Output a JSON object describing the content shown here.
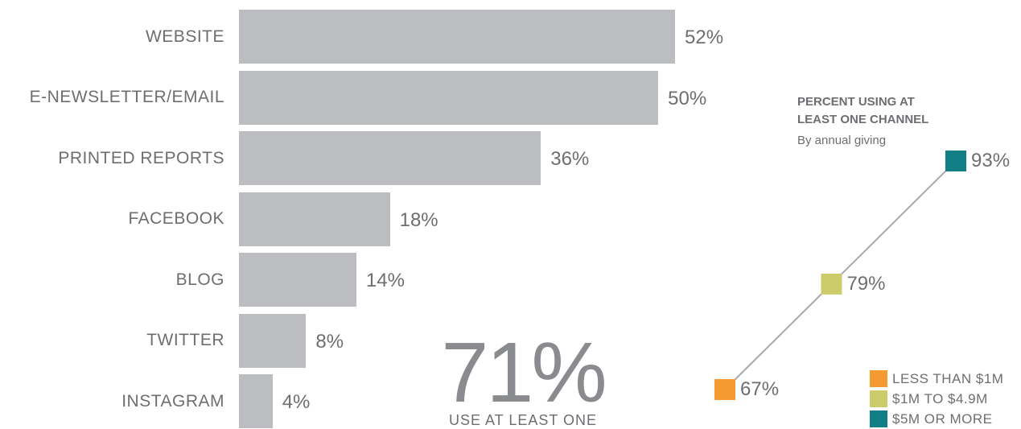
{
  "chart_data": [
    {
      "type": "bar",
      "orientation": "horizontal",
      "categories": [
        "WEBSITE",
        "E-NEWSLETTER/EMAIL",
        "PRINTED REPORTS",
        "FACEBOOK",
        "BLOG",
        "TWITTER",
        "INSTAGRAM"
      ],
      "values": [
        52,
        50,
        36,
        18,
        14,
        8,
        4
      ],
      "value_labels": [
        "52%",
        "50%",
        "36%",
        "18%",
        "14%",
        "8%",
        "4%"
      ],
      "unit": "%",
      "bar_color": "#bcbdc0"
    },
    {
      "type": "scatter",
      "title": [
        "PERCENT USING AT",
        "LEAST ONE CHANNEL"
      ],
      "subtitle": "By annual giving",
      "connected": true,
      "line_color": "#a7a9ac",
      "points": [
        {
          "label": "LESS THAN $1M",
          "value": 67,
          "value_label": "67%",
          "color": "#f39a31"
        },
        {
          "label": "$1M TO $4.9M",
          "value": 79,
          "value_label": "79%",
          "color": "#cdcc6b"
        },
        {
          "label": "$5M OR MORE",
          "value": 93,
          "value_label": "93%",
          "color": "#127f86"
        }
      ],
      "legend_position": "bottom-right"
    }
  ],
  "summary": {
    "big_number": "71%",
    "caption": "USE AT LEAST ONE"
  }
}
